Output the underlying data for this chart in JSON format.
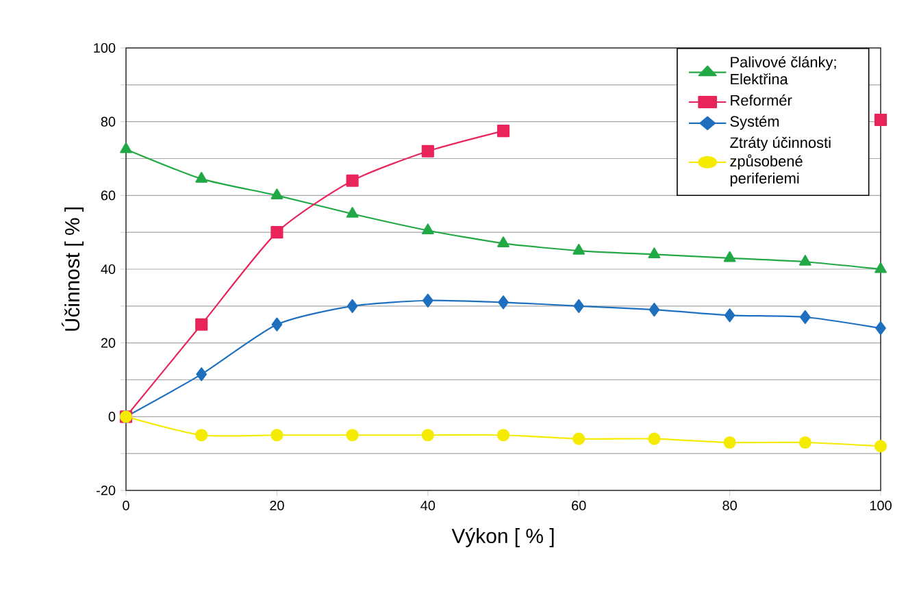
{
  "chart_data": {
    "type": "line",
    "xlabel": "Výkon [ % ]",
    "ylabel": "Účinnost [ % ]",
    "x": [
      0,
      10,
      20,
      30,
      40,
      50,
      60,
      70,
      80,
      90,
      100
    ],
    "series": [
      {
        "name": "Palivové články; Elektřina",
        "color": "#22a845",
        "marker": "triangle",
        "values": [
          72.5,
          64.5,
          60,
          55,
          50.5,
          47,
          45,
          44,
          43,
          42,
          40
        ]
      },
      {
        "name": "Reformér",
        "color": "#e8245a",
        "marker": "square",
        "values": [
          0,
          25,
          50,
          64,
          72,
          77.5,
          null,
          null,
          null,
          null,
          80.5
        ]
      },
      {
        "name": "Systém",
        "color": "#1f6fbf",
        "marker": "diamond",
        "values": [
          0,
          11.5,
          25,
          30,
          31.5,
          31,
          30,
          29,
          27.5,
          27,
          24
        ]
      },
      {
        "name": "Ztráty účinnosti způsobené periferiemi",
        "color": "#f5eb00",
        "marker": "circle",
        "values": [
          0,
          -5,
          -5,
          -5,
          -5,
          -5,
          -6,
          -6,
          -7,
          -7,
          -8
        ]
      }
    ],
    "xlim": [
      0,
      100
    ],
    "xticks": [
      0,
      20,
      40,
      60,
      80,
      100
    ],
    "ylim": [
      -20,
      100
    ],
    "yticks": [
      -20,
      {
        "value": -10,
        "label": null
      },
      0,
      {
        "value": 10,
        "label": null
      },
      20,
      {
        "value": 30,
        "label": null
      },
      40,
      {
        "value": 50,
        "label": null
      },
      60,
      {
        "value": 70,
        "label": null
      },
      80,
      {
        "value": 90,
        "label": null
      },
      100
    ],
    "grid": "y",
    "legend": "top right",
    "line_style": "solid"
  }
}
